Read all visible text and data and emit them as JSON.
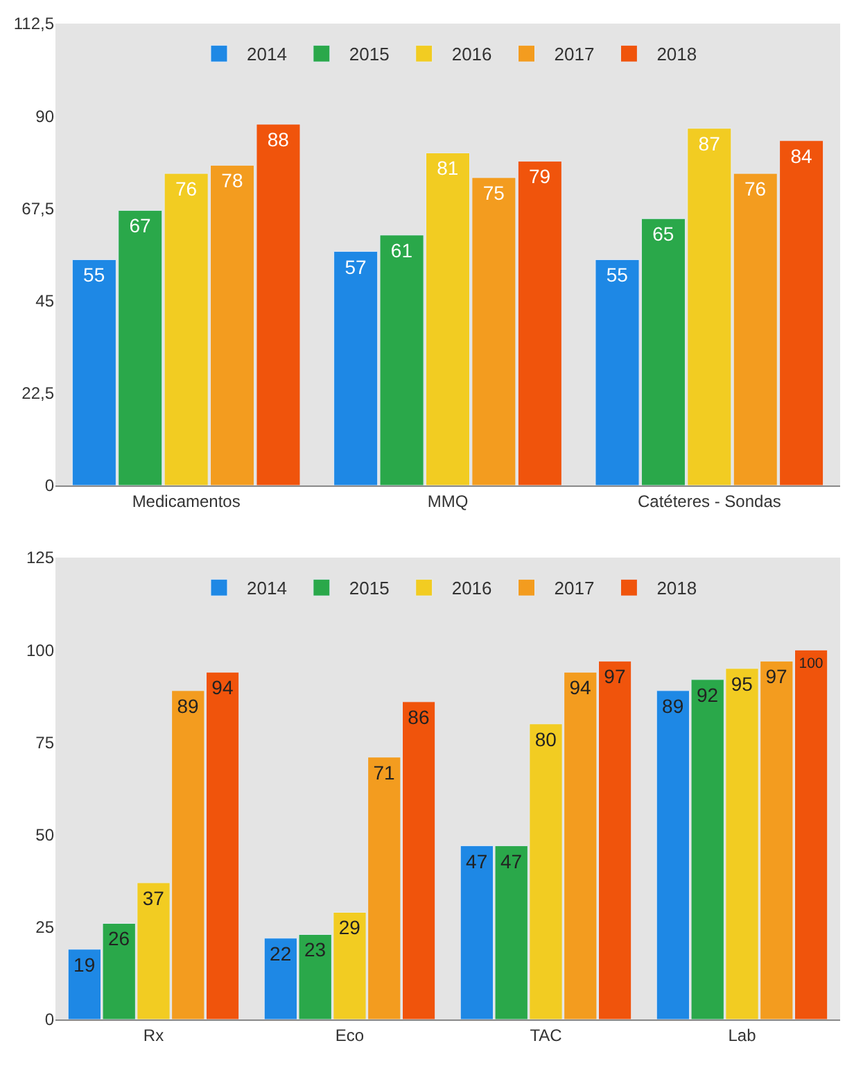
{
  "chart_data": [
    {
      "type": "bar",
      "categories": [
        "Medicamentos",
        "MMQ",
        "Catéteres - Sondas"
      ],
      "series": [
        {
          "name": "2014",
          "color": "#1e88e5",
          "values": [
            55,
            57,
            55
          ]
        },
        {
          "name": "2015",
          "color": "#2aa84a",
          "values": [
            67,
            61,
            65
          ]
        },
        {
          "name": "2016",
          "color": "#f2cc22",
          "values": [
            76,
            81,
            87
          ]
        },
        {
          "name": "2017",
          "color": "#f39c1f",
          "values": [
            78,
            75,
            76
          ]
        },
        {
          "name": "2018",
          "color": "#f0540c",
          "values": [
            88,
            79,
            84
          ]
        }
      ],
      "ylim": [
        0,
        112.5
      ],
      "yticks": [
        0,
        {
          "value": 22.5,
          "label": "22,5"
        },
        45,
        {
          "value": 67.5,
          "label": "67,5"
        },
        90,
        {
          "value": 112.5,
          "label": "112,5"
        }
      ],
      "data_labels": true,
      "legend": "top",
      "grid": false
    },
    {
      "type": "bar",
      "categories": [
        "Rx",
        "Eco",
        "TAC",
        "Lab"
      ],
      "series": [
        {
          "name": "2014",
          "color": "#1e88e5",
          "values": [
            19,
            22,
            47,
            89
          ]
        },
        {
          "name": "2015",
          "color": "#2aa84a",
          "values": [
            26,
            23,
            47,
            92
          ]
        },
        {
          "name": "2016",
          "color": "#f2cc22",
          "values": [
            37,
            29,
            80,
            95
          ]
        },
        {
          "name": "2017",
          "color": "#f39c1f",
          "values": [
            89,
            71,
            94,
            97
          ]
        },
        {
          "name": "2018",
          "color": "#f0540c",
          "values": [
            94,
            86,
            97,
            100
          ]
        }
      ],
      "ylim": [
        0,
        125
      ],
      "yticks": [
        0,
        25,
        50,
        75,
        100,
        125
      ],
      "data_labels": true,
      "legend": "top",
      "grid": false
    }
  ]
}
